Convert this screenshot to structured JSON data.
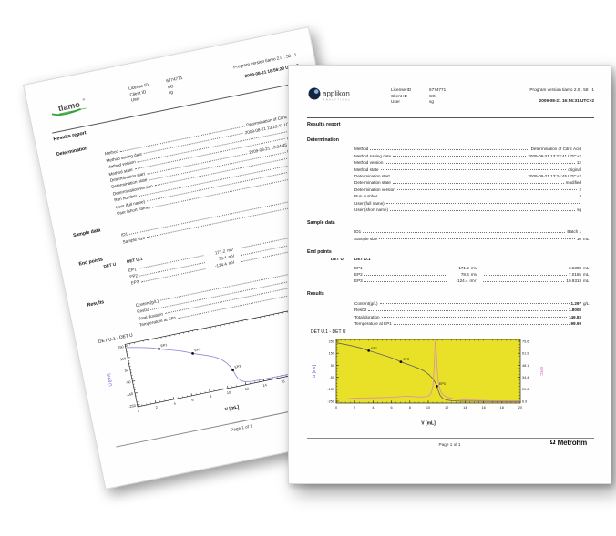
{
  "report": {
    "title": "Results report",
    "header": {
      "license_label": "License ID",
      "license_value": "6774771",
      "client_label": "Client ID",
      "client_value": "SG",
      "user_label": "User",
      "user_value": "sg",
      "program_version": "Program version tiamo 2.0 . 58 . 1"
    },
    "sections": [
      {
        "heading": "Determination",
        "rows": [
          {
            "label": "Method",
            "value": "Determination of Citric Acid"
          },
          {
            "label": "Method saving date",
            "value": "2009-08-21 13:23:41 UTC+2"
          },
          {
            "label": "Method version",
            "value": "12"
          },
          {
            "label": "Method state",
            "value": "original"
          },
          {
            "label": "Determination start",
            "value": "2009-08-21 13:24:45 UTC+2"
          },
          {
            "label": "Determination state",
            "value": "modified"
          },
          {
            "label": "Determination version",
            "value": "2"
          },
          {
            "label": "Run number",
            "value": "4"
          },
          {
            "label": "User (full name)",
            "value": ""
          },
          {
            "label": "User (short name)",
            "value": "sg"
          }
        ]
      },
      {
        "heading": "Sample data",
        "rows": [
          {
            "label": "ID1",
            "value": "Batch 1"
          },
          {
            "label": "Sample size",
            "value": "10",
            "unit": "mL"
          }
        ]
      },
      {
        "heading": "End points",
        "lead_col": "DET U",
        "sub_col": "DET U.1",
        "rows": [
          {
            "label": "EP1",
            "value": "171.2",
            "unit": "mV",
            "value2": "3.5308",
            "unit2": "mL"
          },
          {
            "label": "EP2",
            "value": "78.4",
            "unit": "mV",
            "value2": "7.0165",
            "unit2": "mL"
          },
          {
            "label": "EP3",
            "value": "-124.4",
            "unit": "mV",
            "value2": "10.9318",
            "unit2": "mL"
          }
        ]
      },
      {
        "heading": "Results",
        "rows": [
          {
            "label": "Content(g/L)",
            "value": "1.297",
            "unit": "g/L",
            "bold": true
          },
          {
            "label": "Res02",
            "value": "1.8008",
            "bold": true
          },
          {
            "label": "Total duration",
            "value": "149.83",
            "bold": true
          },
          {
            "label": "Temperature at EP1",
            "value": "99.99",
            "bold": true
          }
        ]
      }
    ],
    "footer": {
      "page_text": "Page 1 of 1",
      "brand": "Metrohm",
      "brand_icon": "Ω"
    }
  },
  "front_page": {
    "datetime": "2009-08-21 16:56:31 UTC+2",
    "logo": {
      "text": "applikon",
      "sub": "ANALYTICAL"
    }
  },
  "back_page": {
    "datetime": "2009-08-21 16:56:29 UTC+2",
    "logo": {
      "text": "tiamo",
      "tm": "®"
    }
  },
  "chart_data": [
    {
      "id": "front-chart",
      "type": "line",
      "title": "DET U.1 - DET U",
      "xlabel": "V [mL]",
      "ylabel_left": "U [mV]",
      "ylabel_right": "ERC",
      "xlim": [
        0,
        20
      ],
      "ylim": [
        -265,
        265
      ],
      "x_ticks": [
        0,
        2,
        4,
        6,
        8,
        10,
        12,
        14,
        16,
        18,
        20
      ],
      "y_ticks_left": [
        250,
        150,
        50,
        -50,
        -150,
        -250
      ],
      "y_ticks_right": [
        "75.6",
        "61.9",
        "48.1",
        "34.4",
        "20.6",
        "6.9"
      ],
      "plot_bg": "#e9e128",
      "ylabel_left_color": "#4949c9",
      "ylabel_right_color": "#d667ae",
      "series": [
        {
          "name": "U",
          "color": "#63635a",
          "points": [
            [
              0,
              237
            ],
            [
              0.6,
              229
            ],
            [
              1.2,
              220
            ],
            [
              2,
              207
            ],
            [
              2.8,
              191
            ],
            [
              3.53,
              171
            ],
            [
              4.2,
              156
            ],
            [
              5,
              137
            ],
            [
              5.8,
              117
            ],
            [
              6.4,
              100
            ],
            [
              7.02,
              78
            ],
            [
              7.6,
              62
            ],
            [
              8.2,
              46
            ],
            [
              8.8,
              29
            ],
            [
              9.3,
              12
            ],
            [
              9.7,
              -6
            ],
            [
              10.1,
              -30
            ],
            [
              10.45,
              -58
            ],
            [
              10.7,
              -88
            ],
            [
              10.93,
              -124
            ],
            [
              11.1,
              -165
            ],
            [
              11.3,
              -202
            ],
            [
              11.6,
              -227
            ],
            [
              12,
              -239
            ],
            [
              12.6,
              -246
            ],
            [
              13.5,
              -249
            ],
            [
              15,
              -250
            ],
            [
              17,
              -251
            ],
            [
              20,
              -251
            ]
          ]
        },
        {
          "name": "ERC",
          "color": "#d98fae",
          "points": [
            [
              0,
              -233
            ],
            [
              0.7,
              -231
            ],
            [
              1.4,
              -228
            ],
            [
              2.2,
              -224
            ],
            [
              3,
              -222
            ],
            [
              4,
              -221
            ],
            [
              5,
              -219
            ],
            [
              6,
              -216
            ],
            [
              6.8,
              -212
            ],
            [
              7.4,
              -208
            ],
            [
              8,
              -209
            ],
            [
              8.6,
              -212
            ],
            [
              9.2,
              -214
            ],
            [
              9.7,
              -212
            ],
            [
              10.1,
              -202
            ],
            [
              10.35,
              -176
            ],
            [
              10.5,
              -118
            ],
            [
              10.6,
              -16
            ],
            [
              10.68,
              122
            ],
            [
              10.74,
              238
            ],
            [
              10.79,
              256
            ],
            [
              10.85,
              196
            ],
            [
              10.93,
              72
            ],
            [
              11.03,
              -44
            ],
            [
              11.16,
              -122
            ],
            [
              11.36,
              -170
            ],
            [
              11.6,
              -196
            ],
            [
              12,
              -214
            ],
            [
              12.5,
              -226
            ],
            [
              13.2,
              -234
            ],
            [
              14,
              -239
            ],
            [
              15.5,
              -243
            ],
            [
              17,
              -245
            ],
            [
              20,
              -246
            ]
          ]
        }
      ],
      "end_points": [
        {
          "label": "EP1",
          "x": 3.53,
          "y": 171.2
        },
        {
          "label": "EP2",
          "x": 7.02,
          "y": 78.4
        },
        {
          "label": "EP3",
          "x": 10.93,
          "y": -124.4
        }
      ]
    },
    {
      "id": "back-chart",
      "type": "line",
      "title": "DET U.1 - DET U",
      "xlabel": "V [mL]",
      "ylabel_left": "U [mV]",
      "ylabel_right": "",
      "xlim": [
        0,
        20
      ],
      "ylim": [
        -265,
        265
      ],
      "x_ticks": [
        0,
        2,
        4,
        6,
        8,
        10,
        12,
        14,
        16,
        18,
        20
      ],
      "y_ticks_left": [
        250,
        150,
        50,
        -50,
        -150,
        -250
      ],
      "y_ticks_right": [],
      "plot_bg": "#ffffff",
      "ylabel_left_color": "#4949c9",
      "ylabel_right_color": "#d667ae",
      "series": [
        {
          "name": "U",
          "color": "#8b8bdc",
          "points": [
            [
              0,
              237
            ],
            [
              0.6,
              229
            ],
            [
              1.2,
              220
            ],
            [
              2,
              207
            ],
            [
              2.8,
              191
            ],
            [
              3.53,
              171
            ],
            [
              4.2,
              156
            ],
            [
              5,
              137
            ],
            [
              5.8,
              117
            ],
            [
              6.4,
              100
            ],
            [
              7.02,
              78
            ],
            [
              7.6,
              62
            ],
            [
              8.2,
              46
            ],
            [
              8.8,
              29
            ],
            [
              9.3,
              12
            ],
            [
              9.7,
              -6
            ],
            [
              10.1,
              -30
            ],
            [
              10.45,
              -58
            ],
            [
              10.7,
              -88
            ],
            [
              10.93,
              -124
            ],
            [
              11.1,
              -165
            ],
            [
              11.3,
              -202
            ],
            [
              11.6,
              -227
            ],
            [
              12,
              -239
            ],
            [
              12.6,
              -246
            ],
            [
              13.5,
              -249
            ],
            [
              15,
              -250
            ],
            [
              17,
              -251
            ],
            [
              20,
              -251
            ]
          ]
        }
      ],
      "end_points": [
        {
          "label": "EP1",
          "x": 3.53,
          "y": 171.2
        },
        {
          "label": "EP2",
          "x": 7.02,
          "y": 78.4
        },
        {
          "label": "EP3",
          "x": 10.93,
          "y": -124.4
        }
      ]
    }
  ]
}
